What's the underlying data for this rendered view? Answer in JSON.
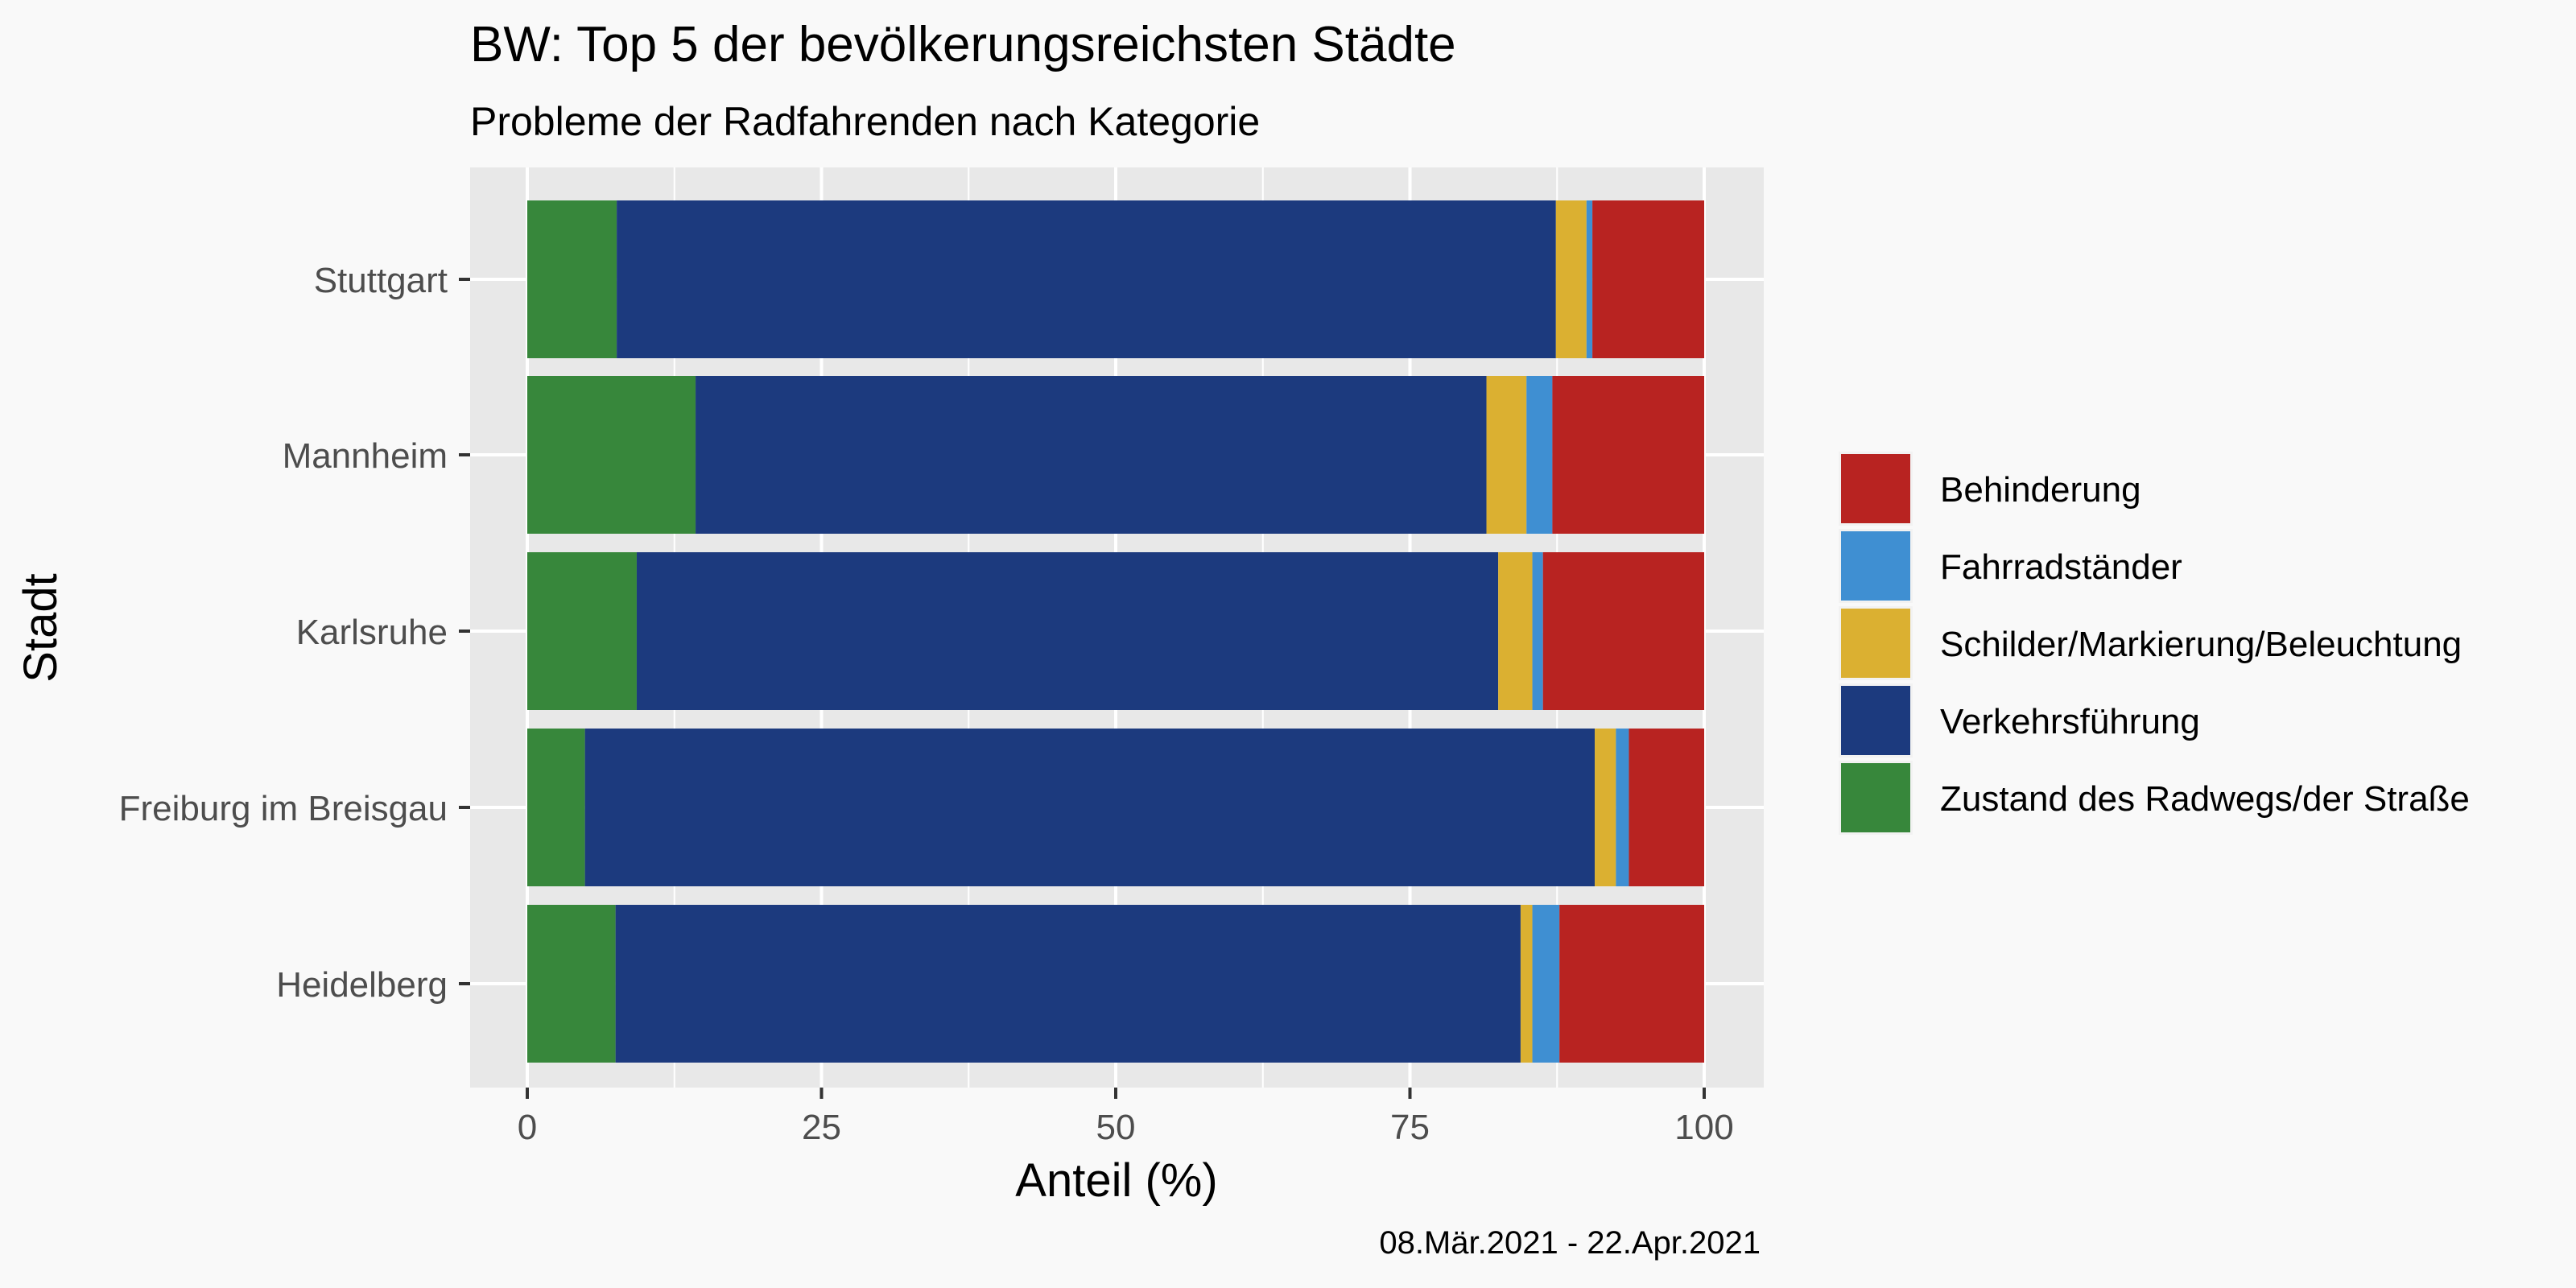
{
  "chart_data": {
    "type": "bar",
    "orientation": "horizontal",
    "stacked": true,
    "title": "BW: Top 5 der bevölkerungsreichsten Städte",
    "subtitle": "Probleme der Radfahrenden nach Kategorie",
    "xlabel": "Anteil (%)",
    "ylabel": "Stadt",
    "caption": "08.Mär.2021 - 22.Apr.2021",
    "xlim": [
      0,
      100
    ],
    "xticks": [
      "0",
      "25",
      "50",
      "75",
      "100"
    ],
    "grid": true,
    "legend_position": "right",
    "categories": [
      "Stuttgart",
      "Mannheim",
      "Karlsruhe",
      "Freiburg im Breisgau",
      "Heidelberg"
    ],
    "series": [
      {
        "name": "Zustand des Radwegs/der Straße",
        "color": "#37873b",
        "values": [
          7.6,
          14.3,
          9.3,
          4.9,
          7.5
        ]
      },
      {
        "name": "Verkehrsführung",
        "color": "#1c3a7e",
        "values": [
          79.8,
          67.2,
          73.2,
          85.8,
          76.9
        ]
      },
      {
        "name": "Schilder/Markierung/Beleuchtung",
        "color": "#dbb031",
        "values": [
          2.6,
          3.4,
          2.9,
          1.8,
          1.0
        ]
      },
      {
        "name": "Fahrradständer",
        "color": "#3f8fd2",
        "values": [
          0.5,
          2.2,
          0.9,
          1.1,
          2.3
        ]
      },
      {
        "name": "Behinderung",
        "color": "#b82321",
        "values": [
          9.5,
          12.9,
          13.7,
          6.4,
          12.3
        ]
      }
    ],
    "legend_order": [
      "Behinderung",
      "Fahrradständer",
      "Schilder/Markierung/Beleuchtung",
      "Verkehrsführung",
      "Zustand des Radwegs/der Straße"
    ]
  }
}
